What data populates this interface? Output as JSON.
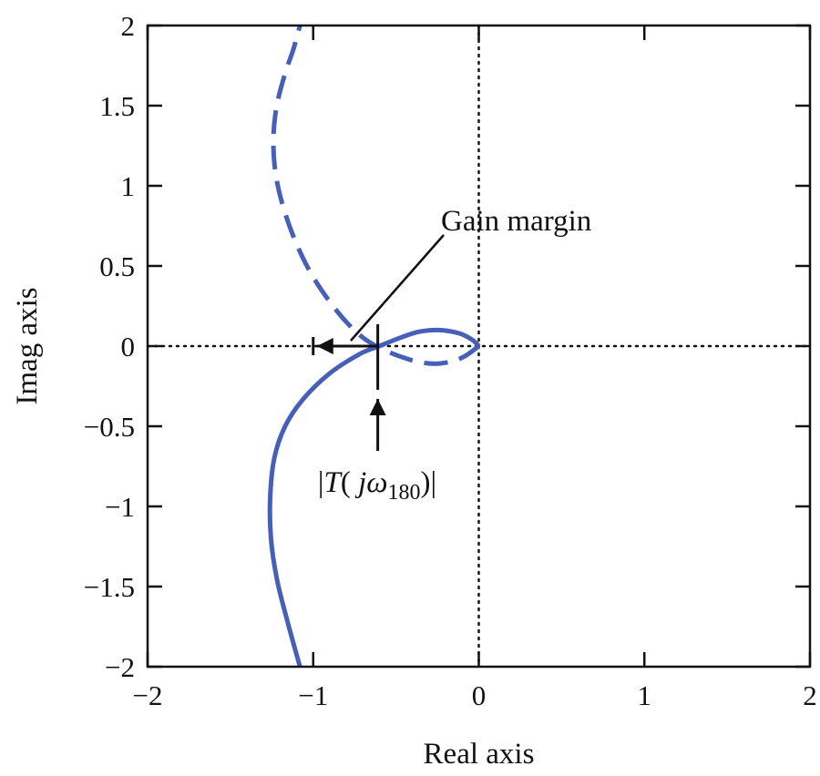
{
  "chart_data": {
    "type": "line",
    "title": "",
    "xlabel": "Real axis",
    "ylabel": "Imag axis",
    "xlim": [
      -2,
      2
    ],
    "ylim": [
      -2,
      2
    ],
    "x_ticks": [
      -2,
      -1,
      0,
      1,
      2
    ],
    "y_ticks": [
      -2,
      -1.5,
      -1,
      -0.5,
      0,
      0.5,
      1,
      1.5,
      2
    ],
    "x_tick_labels": [
      "−2",
      "−1",
      "0",
      "1",
      "2"
    ],
    "y_tick_labels": [
      "−2",
      "−1.5",
      "−1",
      "−0.5",
      "0",
      "0.5",
      "1",
      "1.5",
      "2"
    ],
    "grid": false,
    "reference_lines": {
      "x": 0,
      "y": 0,
      "style": "dotted"
    },
    "color": "#4660b8",
    "series": [
      {
        "style": "solid",
        "x": [
          -1.08,
          -1.16,
          -1.22,
          -1.255,
          -1.26,
          -1.235,
          -1.17,
          -1.06,
          -0.9,
          -0.72,
          -0.6,
          -0.48,
          -0.36,
          -0.24,
          -0.12,
          -0.04,
          0
        ],
        "y": [
          -2,
          -1.7,
          -1.45,
          -1.2,
          -0.95,
          -0.7,
          -0.5,
          -0.33,
          -0.17,
          -0.05,
          0,
          0.05,
          0.09,
          0.1,
          0.08,
          0.04,
          0
        ]
      },
      {
        "style": "dashed",
        "x": [
          0,
          -0.08,
          -0.16,
          -0.26,
          -0.36,
          -0.46,
          -0.56,
          -0.62,
          -0.72,
          -0.85,
          -1,
          -1.11,
          -1.19,
          -1.23,
          -1.24,
          -1.22,
          -1.17,
          -1.12,
          -1.08
        ],
        "y": [
          0,
          -0.06,
          -0.095,
          -0.11,
          -0.1,
          -0.07,
          -0.03,
          0,
          0.07,
          0.21,
          0.43,
          0.66,
          0.9,
          1.1,
          1.3,
          1.5,
          1.7,
          1.85,
          2
        ]
      }
    ],
    "markers": {
      "critical_point": [
        -1,
        0
      ],
      "crossing_point": [
        -0.61,
        0
      ]
    },
    "annotations": [
      {
        "text": "Gain margin"
      },
      {
        "text_prefix": "|",
        "text_italic": "T",
        "text_open": "(",
        "text_j": "jω",
        "text_sub": "180",
        "text_close": ")|"
      }
    ]
  }
}
